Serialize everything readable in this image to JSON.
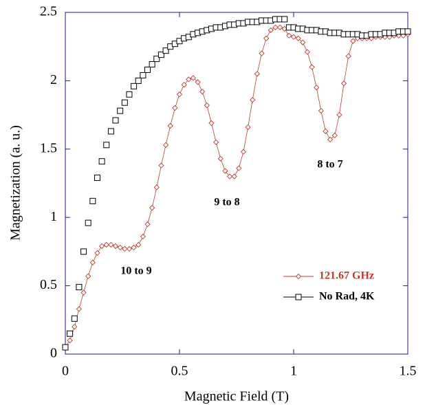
{
  "chart_data": {
    "type": "scatter",
    "x_label": "Magnetic Field (T)",
    "y_label": "Magnetization (a. u.)",
    "x": [
      0,
      0.02,
      0.04,
      0.06,
      0.08,
      0.1,
      0.12,
      0.14,
      0.16,
      0.18,
      0.2,
      0.22,
      0.24,
      0.26,
      0.28,
      0.3,
      0.32,
      0.34,
      0.36,
      0.38,
      0.4,
      0.42,
      0.44,
      0.46,
      0.48,
      0.5,
      0.52,
      0.54,
      0.56,
      0.58,
      0.6,
      0.62,
      0.64,
      0.66,
      0.68,
      0.7,
      0.72,
      0.74,
      0.76,
      0.78,
      0.8,
      0.82,
      0.84,
      0.86,
      0.88,
      0.9,
      0.92,
      0.94,
      0.96,
      0.98,
      1,
      1.02,
      1.04,
      1.06,
      1.08,
      1.1,
      1.12,
      1.14,
      1.16,
      1.18,
      1.2,
      1.22,
      1.24,
      1.26,
      1.28,
      1.3,
      1.32,
      1.34,
      1.36,
      1.38,
      1.4,
      1.42,
      1.44,
      1.46,
      1.48,
      1.5
    ],
    "series": [
      {
        "name": "121.67 GHz",
        "color": "#c0392b",
        "marker": "diamond",
        "line": true,
        "values": [
          0.05,
          0.1,
          0.2,
          0.33,
          0.45,
          0.57,
          0.67,
          0.74,
          0.79,
          0.8,
          0.8,
          0.79,
          0.78,
          0.77,
          0.77,
          0.78,
          0.8,
          0.86,
          0.95,
          1.07,
          1.22,
          1.38,
          1.53,
          1.67,
          1.8,
          1.9,
          1.97,
          2.01,
          2.02,
          1.99,
          1.92,
          1.82,
          1.69,
          1.55,
          1.43,
          1.34,
          1.3,
          1.3,
          1.36,
          1.48,
          1.66,
          1.86,
          2.05,
          2.2,
          2.31,
          2.37,
          2.39,
          2.39,
          2.38,
          2.33,
          2.32,
          2.31,
          2.28,
          2.21,
          2.1,
          1.95,
          1.78,
          1.63,
          1.57,
          1.6,
          1.75,
          1.98,
          2.18,
          2.29,
          2.31,
          2.31,
          2.31,
          2.31,
          2.32,
          2.32,
          2.32,
          2.32,
          2.33,
          2.33,
          2.33,
          2.34
        ]
      },
      {
        "name": "No Rad, 4K",
        "color": "#000000",
        "marker": "square",
        "line": false,
        "values": [
          0.05,
          0.15,
          0.26,
          0.49,
          0.75,
          0.96,
          1.12,
          1.29,
          1.41,
          1.53,
          1.63,
          1.71,
          1.78,
          1.84,
          1.9,
          1.96,
          2,
          2.04,
          2.08,
          2.12,
          2.16,
          2.19,
          2.22,
          2.25,
          2.27,
          2.29,
          2.31,
          2.32,
          2.34,
          2.35,
          2.36,
          2.37,
          2.38,
          2.39,
          2.39,
          2.4,
          2.41,
          2.41,
          2.42,
          2.42,
          2.43,
          2.43,
          2.43,
          2.44,
          2.44,
          2.44,
          2.45,
          2.45,
          2.45,
          2.39,
          2.39,
          2.38,
          2.38,
          2.37,
          2.37,
          2.37,
          2.36,
          2.36,
          2.35,
          2.35,
          2.35,
          2.34,
          2.34,
          2.34,
          2.34,
          2.33,
          2.33,
          2.34,
          2.34,
          2.34,
          2.35,
          2.35,
          2.35,
          2.36,
          2.36,
          2.36
        ]
      }
    ],
    "annotations": [
      "10 to 9",
      "9 to 8",
      "8 to 7"
    ],
    "xlim": [
      0,
      1.5
    ],
    "xticks": [
      0,
      0.5,
      1,
      1.5
    ],
    "ylim": [
      0,
      2.5
    ],
    "yticks": [
      0,
      0.5,
      1,
      1.5,
      2,
      2.5
    ],
    "legend": "lower right"
  }
}
